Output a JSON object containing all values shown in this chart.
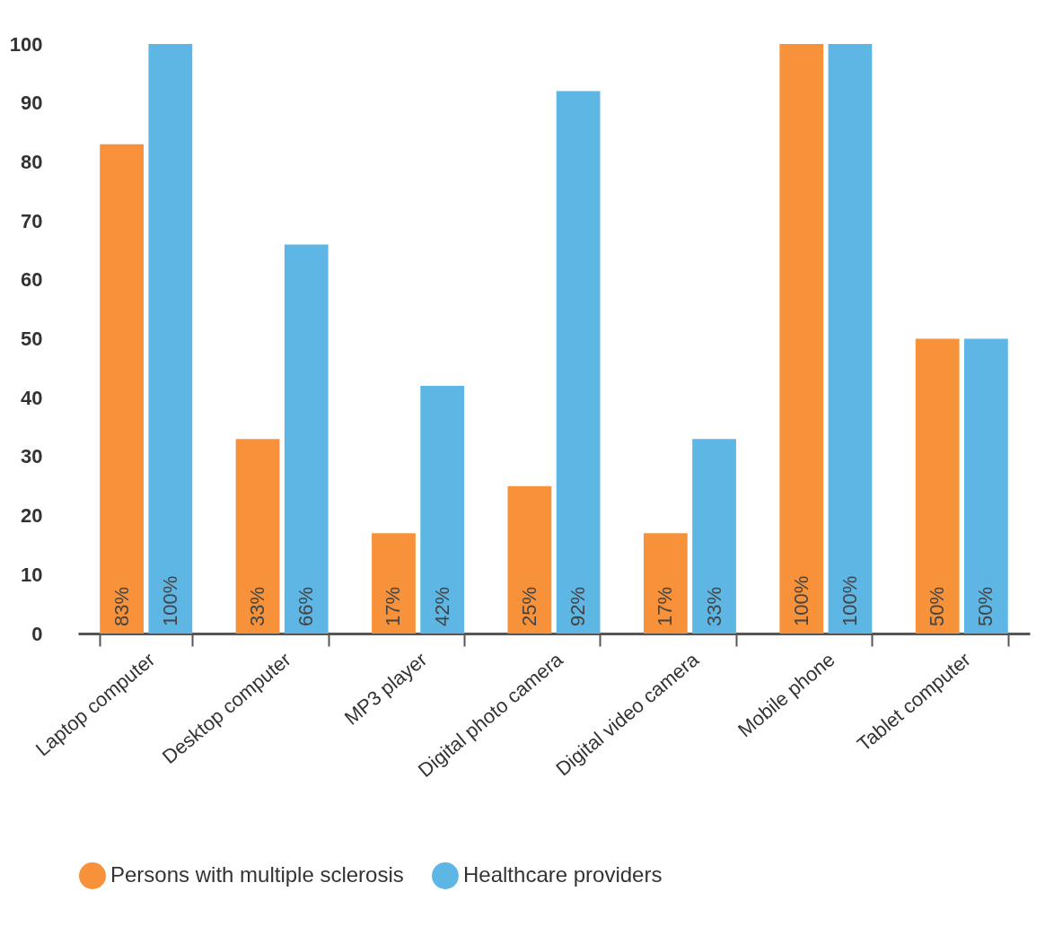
{
  "chart_data": {
    "type": "bar",
    "categories": [
      "Laptop computer",
      "Desktop computer",
      "MP3 player",
      "Digital photo camera",
      "Digital video camera",
      "Mobile phone",
      "Tablet computer"
    ],
    "series": [
      {
        "name": "Persons with multiple sclerosis",
        "color": "#f7923a",
        "values": [
          83,
          33,
          17,
          25,
          17,
          100,
          50
        ],
        "value_labels": [
          "83%",
          "33%",
          "17%",
          "25%",
          "17%",
          "100%",
          "50%"
        ]
      },
      {
        "name": "Healthcare providers",
        "color": "#5eb6e4",
        "values": [
          100,
          66,
          42,
          92,
          33,
          100,
          50
        ],
        "value_labels": [
          "100%",
          "66%",
          "42%",
          "92%",
          "33%",
          "100%",
          "50%"
        ]
      }
    ],
    "ylim": [
      0,
      100
    ],
    "yticks": [
      0,
      10,
      20,
      30,
      40,
      50,
      60,
      70,
      80,
      90,
      100
    ],
    "grid": false,
    "legend": "bottom"
  }
}
